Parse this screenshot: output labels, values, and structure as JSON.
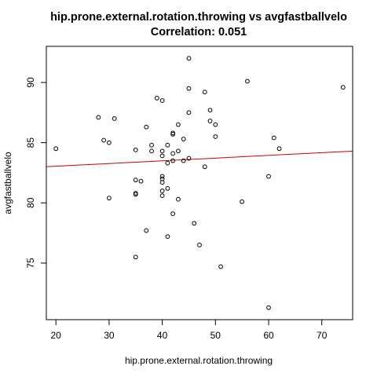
{
  "chart_data": {
    "type": "scatter",
    "title": "hip.prone.external.rotation.throwing vs avgfastballvelo",
    "subtitle": "Correlation: 0.051",
    "xlabel": "hip.prone.external.rotation.throwing",
    "ylabel": "avgfastballvelo",
    "xlim": [
      18.2,
      75.8
    ],
    "ylim": [
      70.3,
      93.0
    ],
    "xticks": [
      20,
      30,
      40,
      50,
      60,
      70
    ],
    "yticks": [
      75,
      80,
      85,
      90
    ],
    "grid": false,
    "legend": "none",
    "points": [
      {
        "x": 20,
        "y": 84.5
      },
      {
        "x": 28,
        "y": 87.1
      },
      {
        "x": 29,
        "y": 85.2
      },
      {
        "x": 30,
        "y": 85.0
      },
      {
        "x": 30,
        "y": 80.4
      },
      {
        "x": 31,
        "y": 87.0
      },
      {
        "x": 35,
        "y": 84.4
      },
      {
        "x": 35,
        "y": 81.9
      },
      {
        "x": 35,
        "y": 80.8
      },
      {
        "x": 35,
        "y": 80.7
      },
      {
        "x": 35,
        "y": 75.5
      },
      {
        "x": 36,
        "y": 81.8
      },
      {
        "x": 37,
        "y": 86.3
      },
      {
        "x": 37,
        "y": 77.7
      },
      {
        "x": 38,
        "y": 84.8
      },
      {
        "x": 38,
        "y": 84.3
      },
      {
        "x": 39,
        "y": 88.7
      },
      {
        "x": 40,
        "y": 88.5
      },
      {
        "x": 40,
        "y": 84.3
      },
      {
        "x": 40,
        "y": 83.9
      },
      {
        "x": 40,
        "y": 82.2
      },
      {
        "x": 40,
        "y": 82.0
      },
      {
        "x": 40,
        "y": 81.7
      },
      {
        "x": 40,
        "y": 81.0
      },
      {
        "x": 40,
        "y": 80.6
      },
      {
        "x": 41,
        "y": 84.8
      },
      {
        "x": 41,
        "y": 83.3
      },
      {
        "x": 41,
        "y": 81.2
      },
      {
        "x": 41,
        "y": 77.2
      },
      {
        "x": 42,
        "y": 85.8
      },
      {
        "x": 42,
        "y": 85.7
      },
      {
        "x": 42,
        "y": 84.1
      },
      {
        "x": 42,
        "y": 83.5
      },
      {
        "x": 42,
        "y": 79.1
      },
      {
        "x": 43,
        "y": 86.5
      },
      {
        "x": 43,
        "y": 84.3
      },
      {
        "x": 43,
        "y": 80.3
      },
      {
        "x": 44,
        "y": 85.3
      },
      {
        "x": 44,
        "y": 83.5
      },
      {
        "x": 45,
        "y": 92.0
      },
      {
        "x": 45,
        "y": 89.5
      },
      {
        "x": 45,
        "y": 87.5
      },
      {
        "x": 45,
        "y": 83.7
      },
      {
        "x": 46,
        "y": 78.3
      },
      {
        "x": 47,
        "y": 76.5
      },
      {
        "x": 48,
        "y": 89.2
      },
      {
        "x": 48,
        "y": 83.0
      },
      {
        "x": 49,
        "y": 87.7
      },
      {
        "x": 49,
        "y": 86.8
      },
      {
        "x": 50,
        "y": 86.5
      },
      {
        "x": 50,
        "y": 85.5
      },
      {
        "x": 51,
        "y": 74.7
      },
      {
        "x": 55,
        "y": 80.1
      },
      {
        "x": 56,
        "y": 90.1
      },
      {
        "x": 60,
        "y": 82.2
      },
      {
        "x": 60,
        "y": 71.3
      },
      {
        "x": 61,
        "y": 85.4
      },
      {
        "x": 62,
        "y": 84.5
      },
      {
        "x": 74,
        "y": 89.6
      }
    ],
    "trendline": {
      "color": "#cc0000",
      "x": [
        18.2,
        75.8
      ],
      "y": [
        83.0,
        84.3
      ]
    },
    "colors": {
      "points": "#000000",
      "trendline": "#cc0000"
    }
  }
}
